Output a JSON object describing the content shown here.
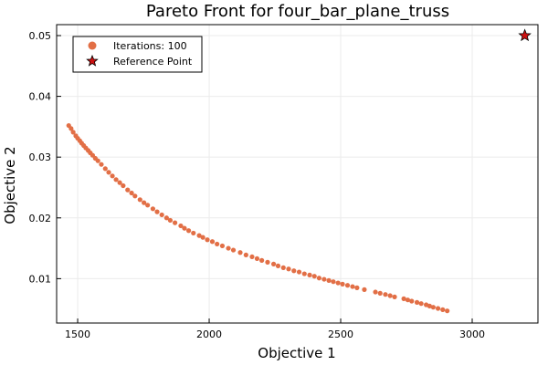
{
  "chart_data": {
    "type": "scatter",
    "title": "Pareto Front for four_bar_plane_truss",
    "xlabel": "Objective 1",
    "ylabel": "Objective 2",
    "xlim": [
      1420,
      3250
    ],
    "ylim": [
      0.0027,
      0.0518
    ],
    "xticks": [
      1500,
      2000,
      2500,
      3000
    ],
    "xtick_labels": [
      "1500",
      "2000",
      "2500",
      "3000"
    ],
    "yticks": [
      0.01,
      0.02,
      0.03,
      0.04,
      0.05
    ],
    "ytick_labels": [
      "0.01",
      "0.02",
      "0.03",
      "0.04",
      "0.05"
    ],
    "grid": true,
    "legend_position": "top-left",
    "series": [
      {
        "name": "Iterations: 100",
        "marker": "circle",
        "color": "#e26f46",
        "x": [
          1466,
          1475,
          1483,
          1493,
          1500,
          1508,
          1515,
          1523,
          1531,
          1540,
          1548,
          1557,
          1567,
          1577,
          1590,
          1605,
          1618,
          1632,
          1646,
          1660,
          1673,
          1690,
          1705,
          1718,
          1737,
          1752,
          1766,
          1786,
          1802,
          1820,
          1838,
          1852,
          1870,
          1892,
          1906,
          1922,
          1940,
          1962,
          1976,
          1993,
          2012,
          2030,
          2050,
          2073,
          2092,
          2118,
          2140,
          2163,
          2182,
          2200,
          2222,
          2245,
          2262,
          2282,
          2302,
          2322,
          2342,
          2362,
          2382,
          2400,
          2418,
          2437,
          2455,
          2472,
          2490,
          2507,
          2526,
          2545,
          2562,
          2590,
          2632,
          2650,
          2670,
          2688,
          2705,
          2740,
          2755,
          2770,
          2790,
          2806,
          2825,
          2838,
          2852,
          2870,
          2888,
          2905
        ],
        "y": [
          0.0352,
          0.0347,
          0.0341,
          0.0335,
          0.0331,
          0.0327,
          0.0323,
          0.0319,
          0.0315,
          0.0311,
          0.0307,
          0.0303,
          0.0298,
          0.0294,
          0.0288,
          0.0281,
          0.0275,
          0.0269,
          0.0263,
          0.0258,
          0.0253,
          0.0246,
          0.0241,
          0.0236,
          0.023,
          0.0225,
          0.0221,
          0.0215,
          0.021,
          0.0205,
          0.02,
          0.0196,
          0.0192,
          0.0187,
          0.0183,
          0.0179,
          0.0175,
          0.0171,
          0.0168,
          0.0164,
          0.0161,
          0.0157,
          0.0154,
          0.015,
          0.0147,
          0.0143,
          0.0139,
          0.0136,
          0.0133,
          0.013,
          0.0127,
          0.0124,
          0.0121,
          0.0118,
          0.0116,
          0.0113,
          0.0111,
          0.0108,
          0.0106,
          0.0104,
          0.0101,
          0.0099,
          0.0097,
          0.0095,
          0.0093,
          0.0091,
          0.0089,
          0.0087,
          0.0085,
          0.0082,
          0.0078,
          0.0076,
          0.0074,
          0.0072,
          0.007,
          0.0067,
          0.0065,
          0.0063,
          0.0061,
          0.0059,
          0.0057,
          0.0055,
          0.0053,
          0.0051,
          0.0049,
          0.0047
        ]
      },
      {
        "name": "Reference Point",
        "marker": "star",
        "color": "#cc1111",
        "x": [
          3200
        ],
        "y": [
          0.05
        ]
      }
    ]
  }
}
